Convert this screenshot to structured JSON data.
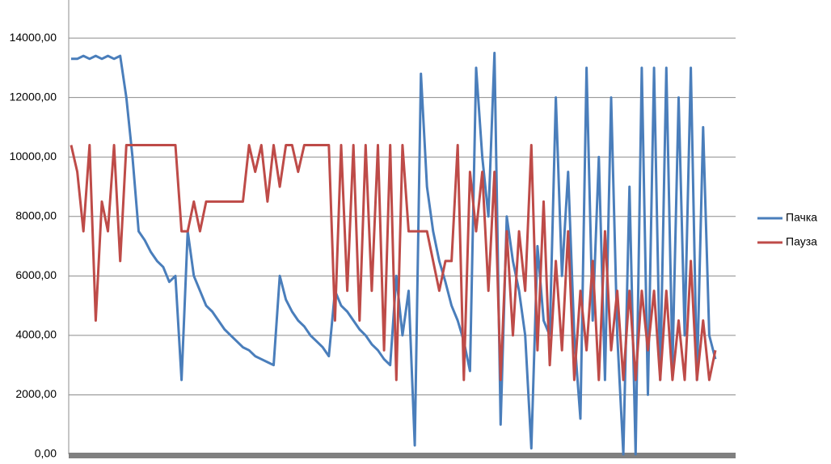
{
  "chart_data": {
    "type": "line",
    "ylim": [
      0,
      15280
    ],
    "yticks": [
      {
        "value": 0,
        "label": "0,00"
      },
      {
        "value": 2000,
        "label": "2000,00"
      },
      {
        "value": 4000,
        "label": "4000,00"
      },
      {
        "value": 6000,
        "label": "6000,00"
      },
      {
        "value": 8000,
        "label": "8000,00"
      },
      {
        "value": 10000,
        "label": "10000,00"
      },
      {
        "value": 12000,
        "label": "12000,00"
      },
      {
        "value": 14000,
        "label": "14000,00"
      }
    ],
    "grid": true,
    "legend": "right",
    "series": [
      {
        "name": "Пачка",
        "color": "#4a7ebb",
        "values": [
          13300,
          13300,
          13400,
          13300,
          13400,
          13300,
          13400,
          13300,
          13400,
          12000,
          10000,
          7500,
          7200,
          6800,
          6500,
          6300,
          5800,
          6000,
          2500,
          7500,
          6000,
          5500,
          5000,
          4800,
          4500,
          4200,
          4000,
          3800,
          3600,
          3500,
          3300,
          3200,
          3100,
          3000,
          6000,
          5200,
          4800,
          4500,
          4300,
          4000,
          3800,
          3600,
          3300,
          5500,
          5000,
          4800,
          4500,
          4200,
          4000,
          3700,
          3500,
          3200,
          3000,
          6000,
          4000,
          5500,
          300,
          12800,
          9000,
          7500,
          6500,
          5800,
          5000,
          4500,
          3800,
          2800,
          13000,
          10000,
          8000,
          13500,
          1000,
          8000,
          6500,
          5500,
          4000,
          200,
          7000,
          4500,
          4000,
          12000,
          6000,
          9500,
          4000,
          1200,
          13000,
          4500,
          10000,
          2500,
          12000,
          4000,
          0,
          9000,
          0,
          13000,
          2000,
          13000,
          2500,
          13000,
          3000,
          12000,
          4000,
          13000,
          2500,
          11000,
          4000,
          3200
        ]
      },
      {
        "name": "Пауза",
        "color": "#be4b48",
        "values": [
          10400,
          9500,
          7500,
          10400,
          4500,
          8500,
          7500,
          10400,
          6500,
          10400,
          10400,
          10400,
          10400,
          10400,
          10400,
          10400,
          10400,
          10400,
          7500,
          7500,
          8500,
          7500,
          8500,
          8500,
          8500,
          8500,
          8500,
          8500,
          8500,
          10400,
          9500,
          10400,
          8500,
          10400,
          9000,
          10400,
          10400,
          9500,
          10400,
          10400,
          10400,
          10400,
          10400,
          4500,
          10400,
          5500,
          10400,
          4500,
          10400,
          5500,
          10400,
          3500,
          10400,
          2500,
          10400,
          7500,
          7500,
          7500,
          7500,
          6500,
          5500,
          6500,
          6500,
          10400,
          2500,
          9500,
          7500,
          9500,
          5500,
          9500,
          2500,
          7500,
          4000,
          7500,
          5500,
          10400,
          3500,
          8500,
          3000,
          6500,
          3500,
          7500,
          2500,
          5500,
          3500,
          6500,
          2500,
          7500,
          3500,
          5500,
          2500,
          5500,
          2500,
          5500,
          3500,
          5500,
          2500,
          5500,
          2500,
          4500,
          2500,
          6500,
          2500,
          4500,
          2500,
          3500
        ]
      }
    ]
  }
}
